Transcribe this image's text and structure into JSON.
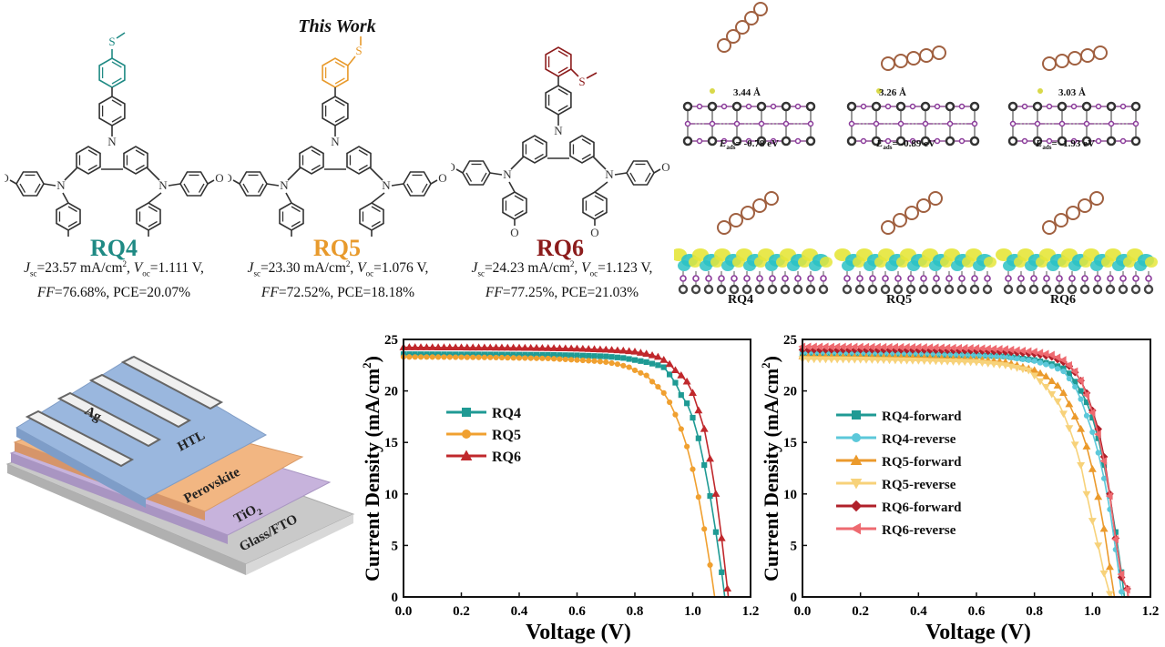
{
  "header": {
    "title": "This Work"
  },
  "molecules": [
    {
      "name": "RQ4",
      "color": "#1f8a84",
      "substituent": "para-SMe",
      "jsc_label": "J",
      "jsc_sub": "sc",
      "jsc_value": "=23.57 mA/cm",
      "jsc_sup": "2",
      "voc_label": "V",
      "voc_sub": "oc",
      "voc_value": "=1.111 V,",
      "ff_label": "FF",
      "ff_value": "=76.68%, PCE=20.07%"
    },
    {
      "name": "RQ5",
      "color": "#e89a2c",
      "substituent": "meta-SMe",
      "jsc_label": "J",
      "jsc_sub": "sc",
      "jsc_value": "=23.30 mA/cm",
      "jsc_sup": "2",
      "voc_label": "V",
      "voc_sub": "oc",
      "voc_value": "=1.076 V,",
      "ff_label": "FF",
      "ff_value": "=72.52%, PCE=18.18%"
    },
    {
      "name": "RQ6",
      "color": "#8c1c1c",
      "substituent": "ortho-SMe",
      "jsc_label": "J",
      "jsc_sub": "sc",
      "jsc_value": "=24.23 mA/cm",
      "jsc_sup": "2",
      "voc_label": "V",
      "voc_sub": "oc",
      "voc_value": "=1.123 V,",
      "ff_label": "FF",
      "ff_value": "=77.25%, PCE=21.03%"
    }
  ],
  "atom_labels": {
    "N": "N",
    "O": "O",
    "S": "S"
  },
  "dft": {
    "adsorption": [
      {
        "distance": "3.44 Å",
        "e_label": "E",
        "e_sub": "ads",
        "e_value": "= -0.78 eV"
      },
      {
        "distance": "3.26 Å",
        "e_label": "E",
        "e_sub": "ads",
        "e_value": "= -0.89 eV"
      },
      {
        "distance": "3.03 Å",
        "e_label": "E",
        "e_sub": "ads",
        "e_value": "= -1.93 eV"
      }
    ],
    "charge_density_labels": [
      "RQ4",
      "RQ5",
      "RQ6"
    ]
  },
  "device": {
    "layers": [
      {
        "name": "Ag",
        "color": "#e8e8e8"
      },
      {
        "name": "HTL",
        "color": "#9ab7de"
      },
      {
        "name": "Perovskite",
        "color": "#f2b682"
      },
      {
        "name": "TiO",
        "sub": "2",
        "color": "#c7b3dc"
      },
      {
        "name": "Glass/FTO",
        "color": "#c9c9c9"
      }
    ]
  },
  "chart_data": [
    {
      "type": "line",
      "title": "",
      "xlabel": "Voltage (V)",
      "ylabel": "Current Density (mA/cm",
      "ylabel_sup": "2",
      "ylabel_end": ")",
      "xlim": [
        0.0,
        1.2
      ],
      "ylim": [
        0,
        25
      ],
      "xticks": [
        "0.0",
        "0.2",
        "0.4",
        "0.6",
        "0.8",
        "1.0",
        "1.2"
      ],
      "yticks": [
        "0",
        "5",
        "10",
        "15",
        "20",
        "25"
      ],
      "grid": false,
      "legend_position": "center-left",
      "series": [
        {
          "name": "RQ4",
          "color": "#1f9a94",
          "marker": "square",
          "jsc": 23.57,
          "voc": 1.111,
          "points": [
            [
              0,
              23.57
            ],
            [
              0.1,
              23.56
            ],
            [
              0.2,
              23.55
            ],
            [
              0.3,
              23.54
            ],
            [
              0.4,
              23.52
            ],
            [
              0.5,
              23.5
            ],
            [
              0.6,
              23.45
            ],
            [
              0.7,
              23.35
            ],
            [
              0.76,
              23.2
            ],
            [
              0.8,
              23.0
            ],
            [
              0.84,
              22.8
            ],
            [
              0.88,
              22.5
            ],
            [
              0.9,
              22.3
            ],
            [
              0.92,
              21.6
            ],
            [
              0.94,
              20.8
            ],
            [
              0.96,
              19.6
            ],
            [
              0.98,
              18.8
            ],
            [
              1.0,
              17.4
            ],
            [
              1.02,
              15.4
            ],
            [
              1.04,
              12.8
            ],
            [
              1.06,
              9.8
            ],
            [
              1.08,
              6.3
            ],
            [
              1.1,
              2.4
            ],
            [
              1.111,
              0
            ]
          ]
        },
        {
          "name": "RQ5",
          "color": "#f0a030",
          "marker": "circle",
          "jsc": 23.3,
          "voc": 1.076,
          "points": [
            [
              0,
              23.3
            ],
            [
              0.1,
              23.29
            ],
            [
              0.2,
              23.27
            ],
            [
              0.3,
              23.25
            ],
            [
              0.4,
              23.2
            ],
            [
              0.5,
              23.15
            ],
            [
              0.6,
              23.0
            ],
            [
              0.66,
              22.9
            ],
            [
              0.7,
              22.8
            ],
            [
              0.74,
              22.6
            ],
            [
              0.78,
              22.3
            ],
            [
              0.8,
              22.0
            ],
            [
              0.84,
              21.5
            ],
            [
              0.86,
              20.9
            ],
            [
              0.88,
              20.4
            ],
            [
              0.9,
              19.8
            ],
            [
              0.92,
              18.9
            ],
            [
              0.94,
              17.7
            ],
            [
              0.96,
              16.3
            ],
            [
              0.98,
              14.6
            ],
            [
              1.0,
              12.4
            ],
            [
              1.02,
              9.7
            ],
            [
              1.04,
              6.6
            ],
            [
              1.06,
              3.1
            ],
            [
              1.076,
              0
            ]
          ]
        },
        {
          "name": "RQ6",
          "color": "#c0282c",
          "marker": "triangle",
          "jsc": 24.23,
          "voc": 1.123,
          "points": [
            [
              0,
              24.23
            ],
            [
              0.1,
              24.22
            ],
            [
              0.2,
              24.21
            ],
            [
              0.3,
              24.2
            ],
            [
              0.4,
              24.18
            ],
            [
              0.5,
              24.15
            ],
            [
              0.6,
              24.1
            ],
            [
              0.7,
              24.0
            ],
            [
              0.76,
              23.9
            ],
            [
              0.8,
              23.8
            ],
            [
              0.84,
              23.6
            ],
            [
              0.88,
              23.3
            ],
            [
              0.9,
              23.0
            ],
            [
              0.92,
              22.6
            ],
            [
              0.94,
              22.0
            ],
            [
              0.96,
              21.5
            ],
            [
              0.98,
              20.9
            ],
            [
              1.0,
              19.8
            ],
            [
              1.02,
              18.1
            ],
            [
              1.04,
              16.3
            ],
            [
              1.06,
              13.4
            ],
            [
              1.08,
              10.0
            ],
            [
              1.1,
              5.7
            ],
            [
              1.12,
              0.8
            ],
            [
              1.123,
              0
            ]
          ]
        }
      ]
    },
    {
      "type": "line",
      "title": "",
      "xlabel": "Voltage (V)",
      "ylabel": "Current Density (mA/cm",
      "ylabel_sup": "2",
      "ylabel_end": ")",
      "xlim": [
        0.0,
        1.2
      ],
      "ylim": [
        0,
        25
      ],
      "xticks": [
        "0.0",
        "0.2",
        "0.4",
        "0.6",
        "0.8",
        "1.0",
        "1.2"
      ],
      "yticks": [
        "0",
        "5",
        "10",
        "15",
        "20",
        "25"
      ],
      "grid": false,
      "legend_position": "center-left",
      "series": [
        {
          "name": "RQ4-forward",
          "color": "#1f9a94",
          "marker": "square",
          "points": [
            [
              0,
              23.6
            ],
            [
              0.2,
              23.58
            ],
            [
              0.4,
              23.55
            ],
            [
              0.6,
              23.45
            ],
            [
              0.7,
              23.35
            ],
            [
              0.8,
              23.0
            ],
            [
              0.86,
              22.6
            ],
            [
              0.9,
              22.2
            ],
            [
              0.92,
              21.7
            ],
            [
              0.94,
              20.9
            ],
            [
              0.96,
              20.0
            ],
            [
              0.98,
              18.9
            ],
            [
              1.0,
              17.4
            ],
            [
              1.02,
              15.4
            ],
            [
              1.04,
              12.8
            ],
            [
              1.06,
              9.8
            ],
            [
              1.08,
              6.3
            ],
            [
              1.1,
              2.4
            ],
            [
              1.11,
              0
            ]
          ]
        },
        {
          "name": "RQ4-reverse",
          "color": "#5cc8da",
          "marker": "circle",
          "points": [
            [
              0,
              23.7
            ],
            [
              0.2,
              23.65
            ],
            [
              0.4,
              23.6
            ],
            [
              0.6,
              23.45
            ],
            [
              0.7,
              23.3
            ],
            [
              0.8,
              22.9
            ],
            [
              0.86,
              22.4
            ],
            [
              0.9,
              21.9
            ],
            [
              0.92,
              21.2
            ],
            [
              0.94,
              20.4
            ],
            [
              0.96,
              19.2
            ],
            [
              0.98,
              17.6
            ],
            [
              1.0,
              16.0
            ],
            [
              1.02,
              14.0
            ],
            [
              1.04,
              11.5
            ],
            [
              1.06,
              8.5
            ],
            [
              1.08,
              4.6
            ],
            [
              1.1,
              0.5
            ],
            [
              1.102,
              0
            ]
          ]
        },
        {
          "name": "RQ5-forward",
          "color": "#eb9a2c",
          "marker": "triangle-up",
          "points": [
            [
              0,
              23.35
            ],
            [
              0.2,
              23.3
            ],
            [
              0.4,
              23.25
            ],
            [
              0.6,
              23.05
            ],
            [
              0.7,
              22.8
            ],
            [
              0.8,
              22.0
            ],
            [
              0.84,
              21.4
            ],
            [
              0.88,
              20.5
            ],
            [
              0.9,
              19.8
            ],
            [
              0.92,
              18.7
            ],
            [
              0.94,
              17.5
            ],
            [
              0.96,
              16.3
            ],
            [
              0.98,
              14.6
            ],
            [
              1.0,
              12.4
            ],
            [
              1.02,
              9.7
            ],
            [
              1.04,
              6.6
            ],
            [
              1.06,
              2.9
            ],
            [
              1.076,
              0
            ]
          ]
        },
        {
          "name": "RQ5-reverse",
          "color": "#f7d27a",
          "marker": "triangle-down",
          "points": [
            [
              0,
              23.1
            ],
            [
              0.2,
              23.05
            ],
            [
              0.4,
              22.95
            ],
            [
              0.6,
              22.8
            ],
            [
              0.7,
              22.5
            ],
            [
              0.78,
              22.0
            ],
            [
              0.8,
              21.5
            ],
            [
              0.84,
              20.4
            ],
            [
              0.88,
              19.0
            ],
            [
              0.9,
              17.8
            ],
            [
              0.92,
              16.4
            ],
            [
              0.94,
              14.8
            ],
            [
              0.96,
              12.8
            ],
            [
              0.98,
              10.0
            ],
            [
              1.0,
              7.4
            ],
            [
              1.02,
              5.0
            ],
            [
              1.04,
              2.3
            ],
            [
              1.06,
              0.3
            ],
            [
              1.07,
              0
            ]
          ]
        },
        {
          "name": "RQ6-forward",
          "color": "#b0202a",
          "marker": "diamond",
          "points": [
            [
              0,
              24.0
            ],
            [
              0.2,
              24.0
            ],
            [
              0.4,
              23.98
            ],
            [
              0.6,
              23.9
            ],
            [
              0.7,
              23.8
            ],
            [
              0.8,
              23.6
            ],
            [
              0.86,
              23.3
            ],
            [
              0.9,
              22.8
            ],
            [
              0.92,
              22.4
            ],
            [
              0.94,
              21.8
            ],
            [
              0.96,
              21.0
            ],
            [
              0.98,
              19.8
            ],
            [
              1.0,
              18.1
            ],
            [
              1.02,
              16.3
            ],
            [
              1.04,
              13.6
            ],
            [
              1.06,
              10.0
            ],
            [
              1.08,
              5.7
            ],
            [
              1.1,
              1.9
            ],
            [
              1.12,
              0.8
            ],
            [
              1.123,
              0
            ]
          ]
        },
        {
          "name": "RQ6-reverse",
          "color": "#ee6a70",
          "marker": "triangle-left",
          "points": [
            [
              0,
              24.3
            ],
            [
              0.2,
              24.28
            ],
            [
              0.4,
              24.25
            ],
            [
              0.6,
              24.15
            ],
            [
              0.7,
              24.05
            ],
            [
              0.8,
              23.8
            ],
            [
              0.86,
              23.5
            ],
            [
              0.9,
              23.0
            ],
            [
              0.92,
              22.5
            ],
            [
              0.94,
              21.9
            ],
            [
              0.96,
              21.0
            ],
            [
              0.98,
              19.6
            ],
            [
              1.0,
              17.9
            ],
            [
              1.02,
              15.8
            ],
            [
              1.04,
              13.2
            ],
            [
              1.06,
              9.8
            ],
            [
              1.08,
              5.6
            ],
            [
              1.1,
              2.2
            ],
            [
              1.12,
              0.7
            ],
            [
              1.125,
              0
            ]
          ]
        }
      ]
    }
  ]
}
